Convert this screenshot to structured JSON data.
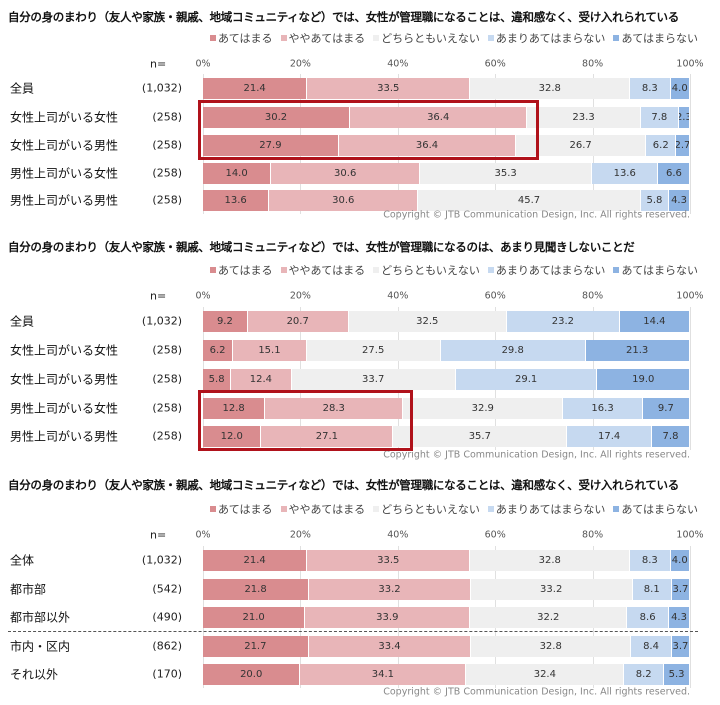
{
  "colors": {
    "c0": "#d98c8f",
    "c1": "#e8b5b8",
    "c2": "#efefef",
    "c3": "#c6d9f0",
    "c4": "#8db3e2",
    "highlight": "#b0121b"
  },
  "chart_data": [
    {
      "type": "bar",
      "orientation": "horizontal",
      "stacked": true,
      "title": "自分の身のまわり（友人や家族・親戚、地域コミュニティなど）では、女性が管理職になることは、違和感なく、受け入れられている",
      "legend": [
        "あてはまる",
        "ややあてはまる",
        "どちらともいえない",
        "あまりあてはまらない",
        "あてはまらない"
      ],
      "legend_position": "top-right",
      "n_header": "n=",
      "xticks": [
        "0%",
        "20%",
        "40%",
        "60%",
        "80%",
        "100%"
      ],
      "xlim": [
        0,
        100
      ],
      "categories": [
        "全員",
        "女性上司がいる女性",
        "女性上司がいる男性",
        "男性上司がいる女性",
        "男性上司がいる男性"
      ],
      "n": [
        "(1,032)",
        "(258)",
        "(258)",
        "(258)",
        "(258)"
      ],
      "values": [
        [
          21.4,
          33.5,
          32.8,
          8.3,
          4.0
        ],
        [
          30.2,
          36.4,
          23.3,
          7.8,
          2.3
        ],
        [
          27.9,
          36.4,
          26.7,
          6.2,
          2.7
        ],
        [
          14.0,
          30.6,
          35.3,
          13.6,
          6.6
        ],
        [
          13.6,
          30.6,
          45.7,
          5.8,
          4.3
        ]
      ],
      "highlighted_rows": [
        1,
        2
      ],
      "copyright": "Copyright © JTB Communication Design, Inc. All rights reserved."
    },
    {
      "type": "bar",
      "orientation": "horizontal",
      "stacked": true,
      "title": "自分の身のまわり（友人や家族・親戚、地域コミュニティなど）では、女性が管理職になるのは、あまり見聞きしないことだ",
      "legend": [
        "あてはまる",
        "ややあてはまる",
        "どちらともいえない",
        "あまりあてはまらない",
        "あてはまらない"
      ],
      "legend_position": "top-right",
      "n_header": "n=",
      "xticks": [
        "0%",
        "20%",
        "40%",
        "60%",
        "80%",
        "100%"
      ],
      "xlim": [
        0,
        100
      ],
      "categories": [
        "全員",
        "女性上司がいる女性",
        "女性上司がいる男性",
        "男性上司がいる女性",
        "男性上司がいる男性"
      ],
      "n": [
        "(1,032)",
        "(258)",
        "(258)",
        "(258)",
        "(258)"
      ],
      "values": [
        [
          9.2,
          20.7,
          32.5,
          23.2,
          14.4
        ],
        [
          6.2,
          15.1,
          27.5,
          29.8,
          21.3
        ],
        [
          5.8,
          12.4,
          33.7,
          29.1,
          19.0
        ],
        [
          12.8,
          28.3,
          32.9,
          16.3,
          9.7
        ],
        [
          12.0,
          27.1,
          35.7,
          17.4,
          7.8
        ]
      ],
      "highlighted_rows": [
        3,
        4
      ],
      "copyright": "Copyright © JTB Communication Design, Inc. All rights reserved."
    },
    {
      "type": "bar",
      "orientation": "horizontal",
      "stacked": true,
      "title": "自分の身のまわり（友人や家族・親戚、地域コミュニティなど）では、女性が管理職になることは、違和感なく、受け入れられている",
      "legend": [
        "あてはまる",
        "ややあてはまる",
        "どちらともいえない",
        "あまりあてはまらない",
        "あてはまらない"
      ],
      "legend_position": "top-right",
      "n_header": "n=",
      "xticks": [
        "0%",
        "20%",
        "40%",
        "60%",
        "80%",
        "100%"
      ],
      "xlim": [
        0,
        100
      ],
      "categories": [
        "全体",
        "都市部",
        "都市部以外",
        "市内・区内",
        "それ以外"
      ],
      "n": [
        "(1,032)",
        "(542)",
        "(490)",
        "(862)",
        "(170)"
      ],
      "values": [
        [
          21.4,
          33.5,
          32.8,
          8.3,
          4.0
        ],
        [
          21.8,
          33.2,
          33.2,
          8.1,
          3.7
        ],
        [
          21.0,
          33.9,
          32.2,
          8.6,
          4.3
        ],
        [
          21.7,
          33.4,
          32.8,
          8.4,
          3.7
        ],
        [
          20.0,
          34.1,
          32.4,
          8.2,
          5.3
        ]
      ],
      "highlighted_rows": [],
      "copyright": "Copyright © JTB Communication Design, Inc. All rights reserved."
    }
  ]
}
